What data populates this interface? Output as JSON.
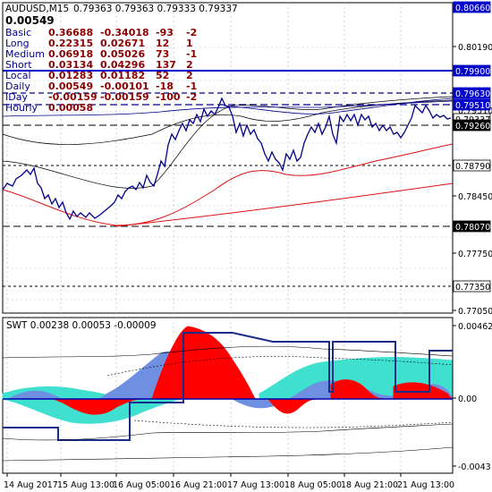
{
  "main_panel": {
    "title": "AUDUSD,M15",
    "ohlc": "0.79363 0.79363 0.79333 0.79337",
    "big_value": "0.00549",
    "table": [
      {
        "label": "Basic",
        "v1": "0.36688",
        "v2": "-0.34018",
        "v3": "-93",
        "v4": "-2"
      },
      {
        "label": "Long",
        "v1": "0.22315",
        "v2": "0.02671",
        "v3": "12",
        "v4": "1"
      },
      {
        "label": "Medium",
        "v1": "0.06918",
        "v2": "0.05026",
        "v3": "73",
        "v4": "-1"
      },
      {
        "label": "Short",
        "v1": "0.03134",
        "v2": "0.04296",
        "v3": "137",
        "v4": "2"
      },
      {
        "label": "Local",
        "v1": "0.01283",
        "v2": "0.01182",
        "v3": "52",
        "v4": "2"
      },
      {
        "label": "Daily",
        "v1": "0.00549",
        "v2": "-0.00101",
        "v3": "-18",
        "v4": "-1"
      },
      {
        "label": "IDay",
        "v1": "-0.00159",
        "v2": "-0.00159",
        "v3": "-100",
        "v4": "-2"
      },
      {
        "label": "Hourly",
        "v1": "0.00058",
        "v2": "",
        "v3": "",
        "v4": ""
      }
    ],
    "axis_ticks": [
      "0.80190",
      "0.79510",
      "0.78450",
      "0.77750",
      "0.77050"
    ],
    "price_tags": [
      {
        "text": "0.80660",
        "color": "#0000cd"
      },
      {
        "text": "0.79900",
        "color": "#0000cd"
      },
      {
        "text": "0.79630",
        "color": "#0000cd"
      },
      {
        "text": "0.79510",
        "color": "#0000cd"
      },
      {
        "text": "0.79337",
        "color": "#000000"
      },
      {
        "text": "0.79260",
        "color": "#ffffff"
      },
      {
        "text": "0.78790",
        "color": "#000000"
      },
      {
        "text": "0.78070",
        "color": "#ffffff"
      },
      {
        "text": "0.77350",
        "color": "#000000"
      }
    ]
  },
  "sub_panel": {
    "title": "SWT 0.00238 0.00053 -0.00009",
    "axis_ticks": [
      "0.00462",
      "0.00",
      "-0.0043"
    ]
  },
  "time_axis": [
    "14 Aug 2017",
    "15 Aug 13:00",
    "16 Aug 05:00",
    "16 Aug 21:00",
    "17 Aug 13:00",
    "18 Aug 05:00",
    "18 Aug 21:00",
    "21 Aug 13:00"
  ],
  "colors": {
    "price_line": "#00008b",
    "red_ma": "#dd1111",
    "bull_fill": "#ff0000",
    "bear_fill": "#40e0d0",
    "blue_fill": "#6f8fe0",
    "grid": "#a9c4d9"
  }
}
